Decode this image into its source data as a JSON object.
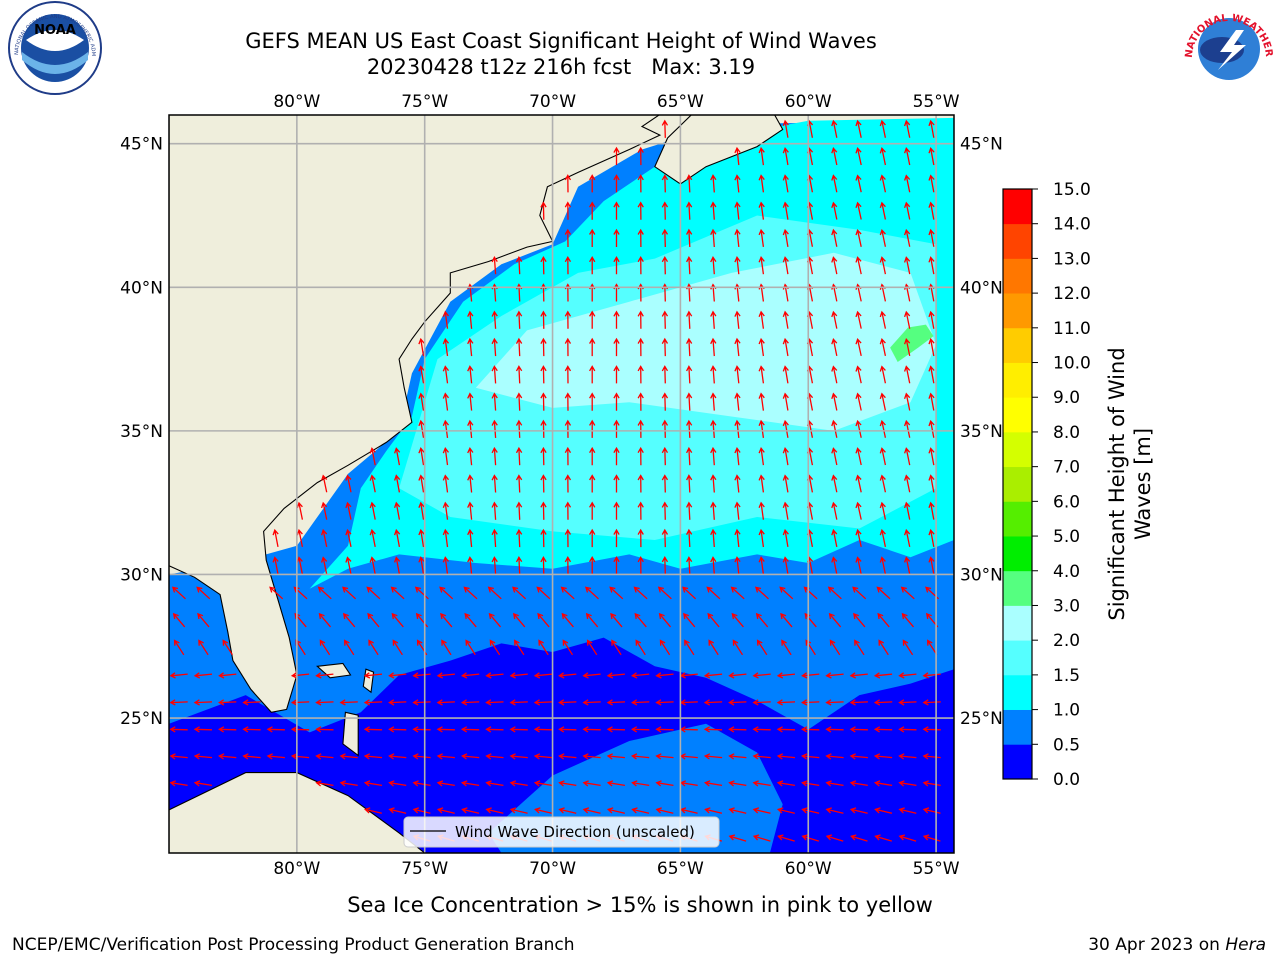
{
  "header": {
    "title_line1": "GEFS MEAN US East Coast Significant Height of Wind Waves",
    "title_line2": "20230428 t12z 216h fcst   Max: 3.19"
  },
  "logos": {
    "noaa_text": "NOAA",
    "noaa_ring": "NATIONAL OCEANIC AND ATMOSPHERIC ADMINISTRATION · U.S. DEPARTMENT OF COMMERCE",
    "nws_ring": "NATIONAL WEATHER SERVICE"
  },
  "colorbar": {
    "label_line1": "Significant Height of Wind",
    "label_line2": "Waves [m]"
  },
  "legend": {
    "label": "Wind Wave Direction (unscaled)"
  },
  "footer": {
    "note": "Sea Ice Concentration > 15% is shown in pink to yellow",
    "left": "NCEP/EMC/Verification Post Processing Product Generation Branch",
    "right_prefix": "30 Apr 2023 on ",
    "right_host": "Hera"
  },
  "chart_data": {
    "type": "heatmap",
    "projection": "equirectangular map",
    "lon_range": [
      -85,
      -54.3
    ],
    "lat_range": [
      20.3,
      46.0
    ],
    "lon_ticks": [
      -80,
      -75,
      -70,
      -65,
      -60,
      -55
    ],
    "lon_tick_labels": [
      "80°W",
      "75°W",
      "70°W",
      "65°W",
      "60°W",
      "55°W"
    ],
    "lat_ticks": [
      25,
      30,
      35,
      40,
      45
    ],
    "lat_tick_labels": [
      "25°N",
      "30°N",
      "35°N",
      "40°N",
      "45°N"
    ],
    "grid": true,
    "max_value": 3.19,
    "colorbar_levels": [
      0.0,
      0.5,
      1.0,
      1.5,
      2.0,
      3.0,
      4.0,
      5.0,
      6.0,
      7.0,
      8.0,
      9.0,
      10.0,
      11.0,
      12.0,
      13.0,
      14.0,
      15.0
    ],
    "colorbar_tick_labels": [
      "0.0",
      "0.5",
      "1.0",
      "1.5",
      "2.0",
      "3.0",
      "4.0",
      "5.0",
      "6.0",
      "7.0",
      "8.0",
      "9.0",
      "10.0",
      "11.0",
      "12.0",
      "13.0",
      "14.0",
      "15.0"
    ],
    "colorbar_colors": [
      "#0000ff",
      "#0080ff",
      "#00ffff",
      "#55ffff",
      "#aaffff",
      "#55ff80",
      "#00ee00",
      "#55ee00",
      "#aaee00",
      "#d4ff00",
      "#ffff00",
      "#ffee00",
      "#ffcc00",
      "#ff9900",
      "#ff7700",
      "#ff4400",
      "#ff0000"
    ],
    "colors": {
      "land": "#efeedc",
      "grid": "#b0b0b0",
      "arrow": "#ff0000",
      "coast": "#000000"
    },
    "regions": [
      {
        "level": "0.5–1.0 m",
        "polygon": [
          [
            -85,
            30
          ],
          [
            -82,
            30.5
          ],
          [
            -80,
            31
          ],
          [
            -78,
            33.5
          ],
          [
            -76,
            35
          ],
          [
            -75.5,
            37
          ],
          [
            -74,
            39.5
          ],
          [
            -72,
            40.8
          ],
          [
            -70,
            41.5
          ],
          [
            -69,
            43.5
          ],
          [
            -66.5,
            44.8
          ],
          [
            -64,
            45.5
          ],
          [
            -62,
            45.7
          ],
          [
            -54.3,
            45.8
          ],
          [
            -54.3,
            20.3
          ],
          [
            -85,
            20.3
          ]
        ]
      },
      {
        "level": "1.0–1.5 m",
        "polygon": [
          [
            -79.5,
            29.5
          ],
          [
            -78,
            31
          ],
          [
            -77.5,
            33
          ],
          [
            -76.5,
            34.3
          ],
          [
            -75.5,
            35.5
          ],
          [
            -75,
            37.5
          ],
          [
            -73.5,
            39.5
          ],
          [
            -71.5,
            40.8
          ],
          [
            -69.5,
            41.6
          ],
          [
            -68,
            43
          ],
          [
            -65.5,
            44.5
          ],
          [
            -63,
            45.3
          ],
          [
            -60,
            45.8
          ],
          [
            -54.3,
            45.9
          ],
          [
            -54.3,
            31.2
          ],
          [
            -56,
            30.6
          ],
          [
            -58,
            31.2
          ],
          [
            -60,
            30.4
          ],
          [
            -62,
            30.7
          ],
          [
            -65,
            30.2
          ],
          [
            -67,
            30.7
          ],
          [
            -70,
            30.2
          ],
          [
            -73,
            30.4
          ],
          [
            -76,
            30.7
          ],
          [
            -78,
            30.2
          ]
        ]
      },
      {
        "level": "1.5–2.0 m",
        "polygon": [
          [
            -75.5,
            34.5
          ],
          [
            -74.5,
            37.5
          ],
          [
            -72,
            39
          ],
          [
            -69,
            40.5
          ],
          [
            -66,
            41
          ],
          [
            -62,
            42.5
          ],
          [
            -58,
            42
          ],
          [
            -55,
            41.5
          ],
          [
            -55,
            33
          ],
          [
            -58,
            31.6
          ],
          [
            -62,
            32
          ],
          [
            -66,
            31.2
          ],
          [
            -70,
            31.5
          ],
          [
            -74,
            32
          ],
          [
            -76,
            33
          ]
        ]
      },
      {
        "level": "2.0–3.0 m",
        "polygon": [
          [
            -73,
            36.5
          ],
          [
            -71,
            38.5
          ],
          [
            -67,
            39.5
          ],
          [
            -63,
            40.5
          ],
          [
            -59,
            41.2
          ],
          [
            -56,
            40.5
          ],
          [
            -55,
            38
          ],
          [
            -56,
            36
          ],
          [
            -59,
            35
          ],
          [
            -63,
            35.5
          ],
          [
            -67,
            36
          ],
          [
            -70,
            35.8
          ]
        ]
      },
      {
        "level": "3.0–4.0 m",
        "polygon": [
          [
            -56.5,
            37.4
          ],
          [
            -55.7,
            37.9
          ],
          [
            -55.1,
            38.3
          ],
          [
            -55.4,
            38.7
          ],
          [
            -56.1,
            38.6
          ],
          [
            -56.8,
            37.9
          ]
        ]
      },
      {
        "level": "0.0–0.5 m",
        "polygon": [
          [
            -85,
            24.8
          ],
          [
            -82,
            25.8
          ],
          [
            -79.5,
            24.5
          ],
          [
            -77.5,
            25.2
          ],
          [
            -76,
            26.5
          ],
          [
            -74,
            27
          ],
          [
            -72,
            27.6
          ],
          [
            -70,
            27.3
          ],
          [
            -68,
            27.8
          ],
          [
            -66,
            26.8
          ],
          [
            -64,
            26.4
          ],
          [
            -62,
            25.6
          ],
          [
            -60,
            24.6
          ],
          [
            -58,
            25.8
          ],
          [
            -56,
            26.2
          ],
          [
            -54.3,
            26.7
          ],
          [
            -54.3,
            20.3
          ],
          [
            -85,
            20.3
          ]
        ]
      },
      {
        "level": "0.5–1.0 m",
        "polygon": [
          [
            -72.5,
            21
          ],
          [
            -70,
            23
          ],
          [
            -67,
            24.2
          ],
          [
            -64,
            24.8
          ],
          [
            -62,
            23.8
          ],
          [
            -61,
            22
          ],
          [
            -61.5,
            20.3
          ],
          [
            -72,
            20.3
          ]
        ]
      }
    ]
  }
}
